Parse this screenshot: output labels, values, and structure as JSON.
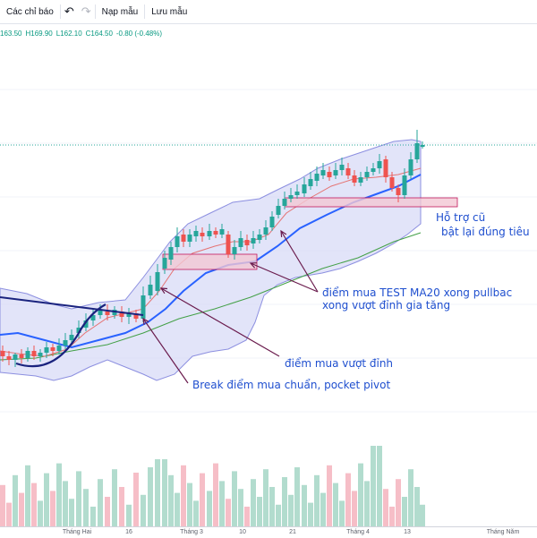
{
  "toolbar": {
    "indicators_label": "Các chỉ báo",
    "load_template_label": "Nạp mẫu",
    "save_template_label": "Lưu mẫu",
    "undo_icon": "undo-icon",
    "redo_icon": "redo-icon"
  },
  "ohlc": {
    "open": "163.50",
    "high": "H169.90",
    "low": "L162.10",
    "close": "C164.50",
    "change": "-0.80 (-0.48%)"
  },
  "annotations": {
    "support": "Hỗ trợ cũ",
    "support_line2": "bật lại đúng tiêu",
    "test_ma20": "điểm mua TEST MA20 xong pullbac",
    "test_ma20_line2": "xong vượt đỉnh gia tăng",
    "breakout_high": "điểm mua vượt đỉnh",
    "break_pocket": "Break điểm mua chuẩn, pocket pivot"
  },
  "xaxis_labels": [
    "Tháng Hai",
    "16",
    "Tháng 3",
    "10",
    "21",
    "Tháng 4",
    "13",
    "Tháng Năm"
  ],
  "colors": {
    "up": "#26a69a",
    "down": "#ef5350",
    "ma20": "#2962ff",
    "ma50": "#43a047",
    "ma10": "#e57373",
    "band_fill": "#d6d8f7",
    "band_stroke": "#8c8fe0",
    "zone": "#f3c7d3",
    "arrow": "#6a1b4d",
    "trend": "#1a237e",
    "annotation_text": "#1f4fcf"
  }
}
